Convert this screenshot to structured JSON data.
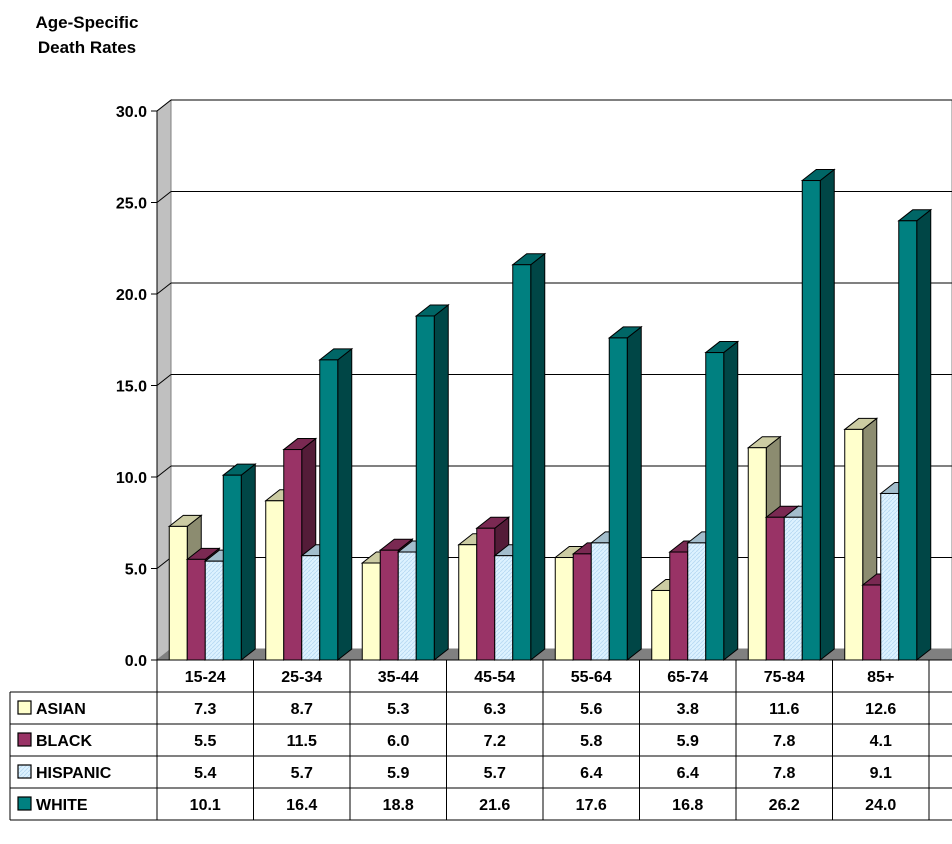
{
  "chart_data": {
    "type": "bar",
    "ylabel": "Age-Specific Death Rates",
    "ylim": [
      0,
      30
    ],
    "yticks": [
      "0.0",
      "5.0",
      "10.0",
      "15.0",
      "20.0",
      "25.0",
      "30.0"
    ],
    "categories": [
      "15-24",
      "25-34",
      "35-44",
      "45-54",
      "55-64",
      "65-74",
      "75-84",
      "85+"
    ],
    "grid": true,
    "legend": "data-table-left",
    "series": [
      {
        "name": "ASIAN",
        "color": "#FFFFCC",
        "values": [
          7.3,
          8.7,
          5.3,
          6.3,
          5.6,
          3.8,
          11.6,
          12.6
        ],
        "labels": [
          "7.3",
          "8.7",
          "5.3",
          "6.3",
          "5.6",
          "3.8",
          "11.6",
          "12.6"
        ]
      },
      {
        "name": "BLACK",
        "color": "#993366",
        "values": [
          5.5,
          11.5,
          6.0,
          7.2,
          5.8,
          5.9,
          7.8,
          4.1
        ],
        "labels": [
          "5.5",
          "11.5",
          "6.0",
          "7.2",
          "5.8",
          "5.9",
          "7.8",
          "4.1"
        ]
      },
      {
        "name": "HISPANIC",
        "color": "#CCECFF",
        "values": [
          5.4,
          5.7,
          5.9,
          5.7,
          6.4,
          6.4,
          7.8,
          9.1
        ],
        "labels": [
          "5.4",
          "5.7",
          "5.9",
          "5.7",
          "6.4",
          "6.4",
          "7.8",
          "9.1"
        ]
      },
      {
        "name": "WHITE",
        "color": "#008080",
        "values": [
          10.1,
          16.4,
          18.8,
          21.6,
          17.6,
          16.8,
          26.2,
          24.0
        ],
        "labels": [
          "10.1",
          "16.4",
          "18.8",
          "21.6",
          "17.6",
          "16.8",
          "26.2",
          "24.0"
        ]
      }
    ]
  }
}
